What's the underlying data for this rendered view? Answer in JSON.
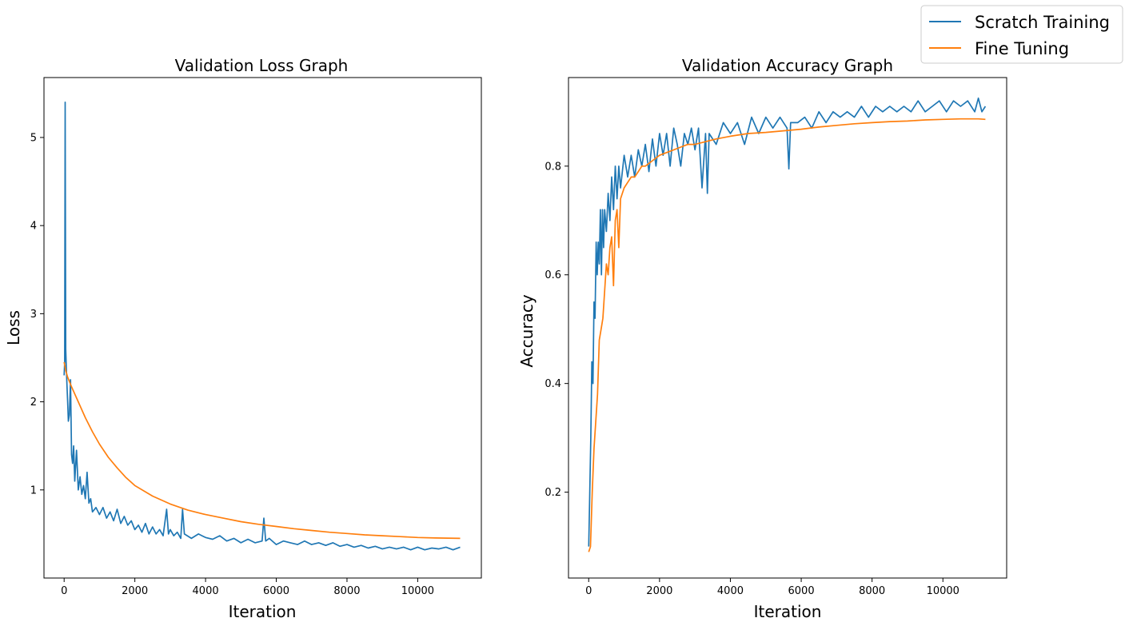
{
  "legend": {
    "placement": "top-right",
    "entries": [
      {
        "name": "Scratch Training",
        "color": "#1f77b4"
      },
      {
        "name": "Fine Tuning",
        "color": "#ff7f0e"
      }
    ]
  },
  "chart_data": [
    {
      "type": "line",
      "title": "Validation Loss Graph",
      "xlabel": "Iteration",
      "ylabel": "Loss",
      "xlim": [
        -570,
        11800
      ],
      "ylim": [
        0.0,
        5.68
      ],
      "xticks": [
        0,
        2000,
        4000,
        6000,
        8000,
        10000
      ],
      "yticks": [
        1,
        2,
        3,
        4,
        5
      ],
      "grid": false,
      "series": [
        {
          "name": "Scratch Training",
          "color": "#1f77b4",
          "points": [
            [
              0,
              2.3
            ],
            [
              15,
              2.45
            ],
            [
              30,
              5.4
            ],
            [
              45,
              2.6
            ],
            [
              60,
              2.4
            ],
            [
              80,
              2.2
            ],
            [
              100,
              2.0
            ],
            [
              120,
              1.78
            ],
            [
              150,
              1.85
            ],
            [
              180,
              2.25
            ],
            [
              210,
              1.4
            ],
            [
              240,
              1.3
            ],
            [
              270,
              1.5
            ],
            [
              300,
              1.1
            ],
            [
              350,
              1.45
            ],
            [
              400,
              1.0
            ],
            [
              450,
              1.15
            ],
            [
              500,
              0.95
            ],
            [
              550,
              1.05
            ],
            [
              600,
              0.9
            ],
            [
              650,
              1.2
            ],
            [
              700,
              0.85
            ],
            [
              750,
              0.9
            ],
            [
              800,
              0.75
            ],
            [
              900,
              0.8
            ],
            [
              1000,
              0.72
            ],
            [
              1100,
              0.8
            ],
            [
              1200,
              0.68
            ],
            [
              1300,
              0.75
            ],
            [
              1400,
              0.65
            ],
            [
              1500,
              0.78
            ],
            [
              1600,
              0.62
            ],
            [
              1700,
              0.7
            ],
            [
              1800,
              0.6
            ],
            [
              1900,
              0.65
            ],
            [
              2000,
              0.55
            ],
            [
              2100,
              0.6
            ],
            [
              2200,
              0.52
            ],
            [
              2300,
              0.62
            ],
            [
              2400,
              0.5
            ],
            [
              2500,
              0.58
            ],
            [
              2600,
              0.5
            ],
            [
              2700,
              0.55
            ],
            [
              2800,
              0.48
            ],
            [
              2900,
              0.78
            ],
            [
              2950,
              0.5
            ],
            [
              3000,
              0.55
            ],
            [
              3100,
              0.48
            ],
            [
              3200,
              0.52
            ],
            [
              3300,
              0.45
            ],
            [
              3350,
              0.78
            ],
            [
              3400,
              0.5
            ],
            [
              3600,
              0.45
            ],
            [
              3800,
              0.5
            ],
            [
              4000,
              0.46
            ],
            [
              4200,
              0.44
            ],
            [
              4400,
              0.48
            ],
            [
              4600,
              0.42
            ],
            [
              4800,
              0.45
            ],
            [
              5000,
              0.4
            ],
            [
              5200,
              0.44
            ],
            [
              5400,
              0.4
            ],
            [
              5600,
              0.42
            ],
            [
              5650,
              0.68
            ],
            [
              5700,
              0.42
            ],
            [
              5800,
              0.45
            ],
            [
              6000,
              0.38
            ],
            [
              6200,
              0.42
            ],
            [
              6400,
              0.4
            ],
            [
              6600,
              0.38
            ],
            [
              6800,
              0.42
            ],
            [
              7000,
              0.38
            ],
            [
              7200,
              0.4
            ],
            [
              7400,
              0.37
            ],
            [
              7600,
              0.4
            ],
            [
              7800,
              0.36
            ],
            [
              8000,
              0.38
            ],
            [
              8200,
              0.35
            ],
            [
              8400,
              0.37
            ],
            [
              8600,
              0.34
            ],
            [
              8800,
              0.36
            ],
            [
              9000,
              0.33
            ],
            [
              9200,
              0.35
            ],
            [
              9400,
              0.33
            ],
            [
              9600,
              0.35
            ],
            [
              9800,
              0.32
            ],
            [
              10000,
              0.35
            ],
            [
              10200,
              0.32
            ],
            [
              10400,
              0.34
            ],
            [
              10600,
              0.33
            ],
            [
              10800,
              0.35
            ],
            [
              11000,
              0.32
            ],
            [
              11200,
              0.35
            ]
          ]
        },
        {
          "name": "Fine Tuning",
          "color": "#ff7f0e",
          "points": [
            [
              0,
              2.45
            ],
            [
              50,
              2.35
            ],
            [
              100,
              2.28
            ],
            [
              200,
              2.18
            ],
            [
              400,
              2.0
            ],
            [
              600,
              1.82
            ],
            [
              800,
              1.66
            ],
            [
              1000,
              1.52
            ],
            [
              1250,
              1.37
            ],
            [
              1500,
              1.25
            ],
            [
              1750,
              1.14
            ],
            [
              2000,
              1.05
            ],
            [
              2500,
              0.93
            ],
            [
              3000,
              0.84
            ],
            [
              3500,
              0.77
            ],
            [
              4000,
              0.72
            ],
            [
              4500,
              0.68
            ],
            [
              5000,
              0.64
            ],
            [
              5500,
              0.61
            ],
            [
              6000,
              0.585
            ],
            [
              6500,
              0.56
            ],
            [
              7000,
              0.54
            ],
            [
              7500,
              0.52
            ],
            [
              8000,
              0.505
            ],
            [
              8500,
              0.49
            ],
            [
              9000,
              0.48
            ],
            [
              9500,
              0.47
            ],
            [
              10000,
              0.46
            ],
            [
              10500,
              0.455
            ],
            [
              11200,
              0.45
            ]
          ]
        }
      ]
    },
    {
      "type": "line",
      "title": "Validation Accuracy Graph",
      "xlabel": "Iteration",
      "ylabel": "Accuracy",
      "xlim": [
        -570,
        11800
      ],
      "ylim": [
        0.042,
        0.963
      ],
      "xticks": [
        0,
        2000,
        4000,
        6000,
        8000,
        10000
      ],
      "yticks": [
        0.2,
        0.4,
        0.6,
        0.8
      ],
      "grid": false,
      "series": [
        {
          "name": "Scratch Training",
          "color": "#1f77b4",
          "points": [
            [
              0,
              0.1
            ],
            [
              30,
              0.2
            ],
            [
              60,
              0.3
            ],
            [
              90,
              0.44
            ],
            [
              120,
              0.4
            ],
            [
              150,
              0.55
            ],
            [
              180,
              0.52
            ],
            [
              210,
              0.66
            ],
            [
              240,
              0.6
            ],
            [
              270,
              0.66
            ],
            [
              300,
              0.62
            ],
            [
              330,
              0.72
            ],
            [
              360,
              0.6
            ],
            [
              390,
              0.72
            ],
            [
              420,
              0.65
            ],
            [
              450,
              0.72
            ],
            [
              500,
              0.68
            ],
            [
              550,
              0.75
            ],
            [
              600,
              0.7
            ],
            [
              650,
              0.78
            ],
            [
              700,
              0.72
            ],
            [
              750,
              0.8
            ],
            [
              800,
              0.74
            ],
            [
              850,
              0.8
            ],
            [
              900,
              0.76
            ],
            [
              1000,
              0.82
            ],
            [
              1100,
              0.78
            ],
            [
              1200,
              0.82
            ],
            [
              1300,
              0.78
            ],
            [
              1400,
              0.83
            ],
            [
              1500,
              0.8
            ],
            [
              1600,
              0.84
            ],
            [
              1700,
              0.79
            ],
            [
              1800,
              0.85
            ],
            [
              1900,
              0.8
            ],
            [
              2000,
              0.86
            ],
            [
              2100,
              0.82
            ],
            [
              2200,
              0.86
            ],
            [
              2300,
              0.8
            ],
            [
              2400,
              0.87
            ],
            [
              2500,
              0.84
            ],
            [
              2600,
              0.8
            ],
            [
              2700,
              0.86
            ],
            [
              2800,
              0.84
            ],
            [
              2900,
              0.87
            ],
            [
              3000,
              0.83
            ],
            [
              3100,
              0.87
            ],
            [
              3200,
              0.76
            ],
            [
              3300,
              0.86
            ],
            [
              3350,
              0.75
            ],
            [
              3400,
              0.86
            ],
            [
              3600,
              0.84
            ],
            [
              3800,
              0.88
            ],
            [
              4000,
              0.86
            ],
            [
              4200,
              0.88
            ],
            [
              4400,
              0.84
            ],
            [
              4600,
              0.89
            ],
            [
              4800,
              0.86
            ],
            [
              5000,
              0.89
            ],
            [
              5200,
              0.87
            ],
            [
              5400,
              0.89
            ],
            [
              5600,
              0.87
            ],
            [
              5650,
              0.795
            ],
            [
              5700,
              0.88
            ],
            [
              5900,
              0.88
            ],
            [
              6100,
              0.89
            ],
            [
              6300,
              0.87
            ],
            [
              6500,
              0.9
            ],
            [
              6700,
              0.88
            ],
            [
              6900,
              0.9
            ],
            [
              7100,
              0.89
            ],
            [
              7300,
              0.9
            ],
            [
              7500,
              0.89
            ],
            [
              7700,
              0.91
            ],
            [
              7900,
              0.89
            ],
            [
              8100,
              0.91
            ],
            [
              8300,
              0.9
            ],
            [
              8500,
              0.91
            ],
            [
              8700,
              0.9
            ],
            [
              8900,
              0.91
            ],
            [
              9100,
              0.9
            ],
            [
              9300,
              0.92
            ],
            [
              9500,
              0.9
            ],
            [
              9700,
              0.91
            ],
            [
              9900,
              0.92
            ],
            [
              10100,
              0.9
            ],
            [
              10300,
              0.92
            ],
            [
              10500,
              0.91
            ],
            [
              10700,
              0.92
            ],
            [
              10900,
              0.9
            ],
            [
              11000,
              0.925
            ],
            [
              11100,
              0.9
            ],
            [
              11200,
              0.91
            ]
          ]
        },
        {
          "name": "Fine Tuning",
          "color": "#ff7f0e",
          "points": [
            [
              0,
              0.09
            ],
            [
              50,
              0.1
            ],
            [
              100,
              0.2
            ],
            [
              150,
              0.28
            ],
            [
              200,
              0.33
            ],
            [
              250,
              0.38
            ],
            [
              300,
              0.48
            ],
            [
              350,
              0.5
            ],
            [
              400,
              0.52
            ],
            [
              450,
              0.57
            ],
            [
              500,
              0.62
            ],
            [
              550,
              0.6
            ],
            [
              600,
              0.65
            ],
            [
              650,
              0.67
            ],
            [
              700,
              0.58
            ],
            [
              750,
              0.7
            ],
            [
              800,
              0.72
            ],
            [
              850,
              0.65
            ],
            [
              900,
              0.74
            ],
            [
              1000,
              0.76
            ],
            [
              1100,
              0.77
            ],
            [
              1200,
              0.78
            ],
            [
              1300,
              0.78
            ],
            [
              1400,
              0.79
            ],
            [
              1500,
              0.8
            ],
            [
              1600,
              0.8
            ],
            [
              1800,
              0.81
            ],
            [
              2000,
              0.82
            ],
            [
              2200,
              0.825
            ],
            [
              2400,
              0.83
            ],
            [
              2600,
              0.835
            ],
            [
              2800,
              0.84
            ],
            [
              3000,
              0.84
            ],
            [
              3300,
              0.845
            ],
            [
              3600,
              0.85
            ],
            [
              4000,
              0.855
            ],
            [
              4500,
              0.86
            ],
            [
              5000,
              0.862
            ],
            [
              5500,
              0.865
            ],
            [
              6000,
              0.868
            ],
            [
              6500,
              0.872
            ],
            [
              7000,
              0.875
            ],
            [
              7500,
              0.878
            ],
            [
              8000,
              0.88
            ],
            [
              8500,
              0.882
            ],
            [
              9000,
              0.883
            ],
            [
              9500,
              0.885
            ],
            [
              10000,
              0.886
            ],
            [
              10500,
              0.887
            ],
            [
              11000,
              0.887
            ],
            [
              11200,
              0.886
            ]
          ]
        }
      ]
    }
  ]
}
